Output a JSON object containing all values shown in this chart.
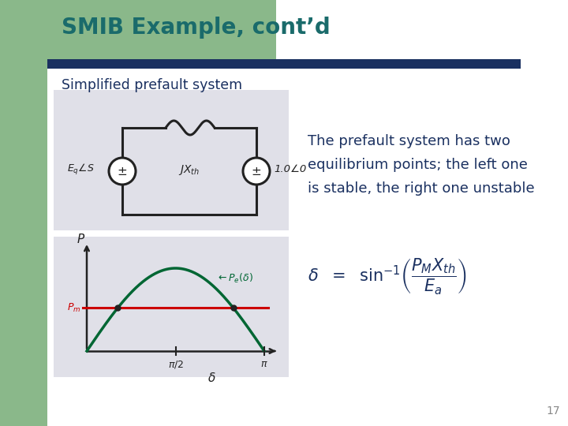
{
  "title": "SMIB Example, cont’d",
  "title_color": "#1a6b6b",
  "subtitle": "Simplified prefault system",
  "subtitle_color": "#1a3060",
  "background_color": "#ffffff",
  "left_green_color": "#8ab88a",
  "title_green_color": "#8ab88a",
  "header_bar_color": "#1a3060",
  "slide_number": "17",
  "text_line1": "The prefault system has two",
  "text_line2": "equilibrium points; the left one",
  "text_line3": "is stable, the right one unstable",
  "text_color": "#1a3060",
  "circuit_bg": "#e0e0e8",
  "graph_bg": "#e0e0e8",
  "sine_color": "#006633",
  "pm_line_color": "#cc0000",
  "hand_color": "#222222"
}
